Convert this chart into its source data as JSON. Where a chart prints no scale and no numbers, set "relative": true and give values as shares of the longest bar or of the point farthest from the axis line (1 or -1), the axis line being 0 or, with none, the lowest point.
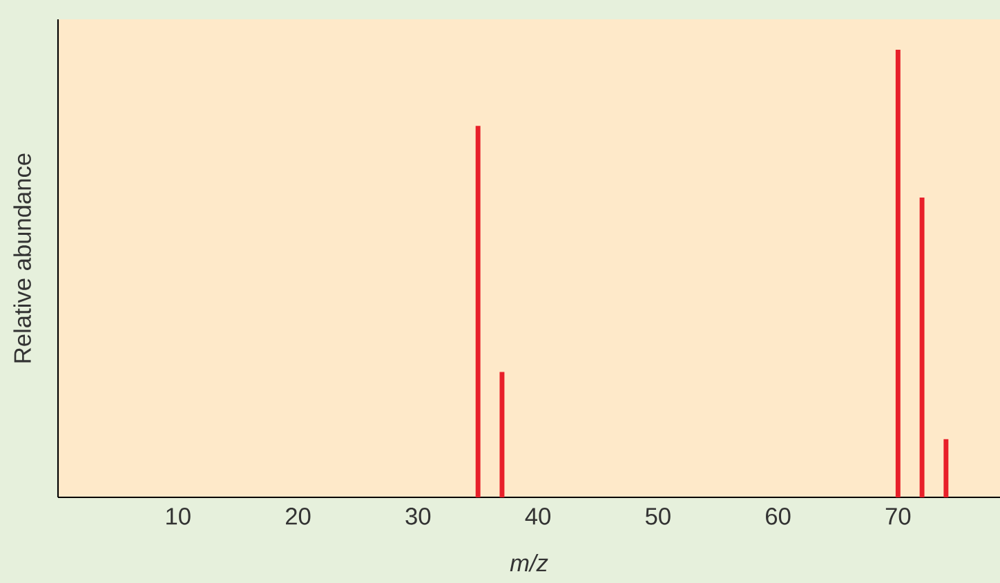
{
  "chart_data": {
    "type": "bar",
    "relative": true,
    "xlabel": "m/z",
    "ylabel": "Relative abundance",
    "x": [
      35,
      37,
      70,
      72,
      74
    ],
    "values": [
      0.83,
      0.28,
      1,
      0.67,
      0.13
    ],
    "color": "#e8202a",
    "xlim": [
      0,
      78.5
    ],
    "xticks": [
      10,
      20,
      30,
      40,
      50,
      60,
      70
    ],
    "grid": false
  }
}
